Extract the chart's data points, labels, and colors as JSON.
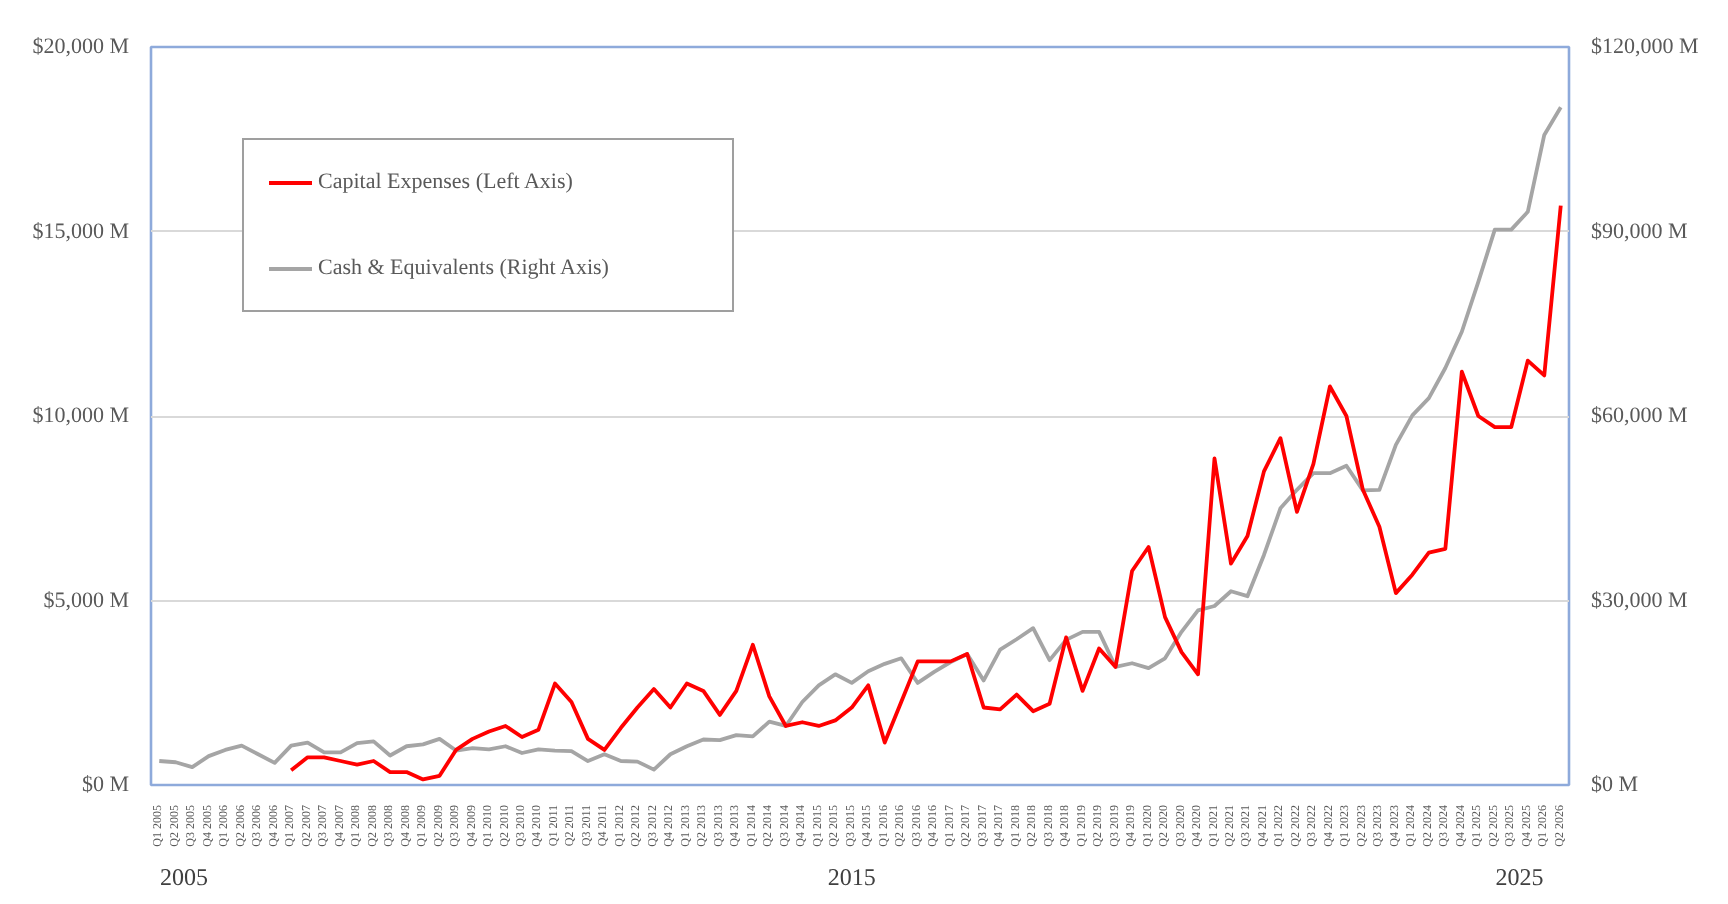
{
  "chart_data": {
    "type": "line",
    "categories": [
      "Q1 2005",
      "Q2 2005",
      "Q3 2005",
      "Q4 2005",
      "Q1 2006",
      "Q2 2006",
      "Q3 2006",
      "Q4 2006",
      "Q1 2007",
      "Q2 2007",
      "Q3 2007",
      "Q4 2007",
      "Q1 2008",
      "Q2 2008",
      "Q3 2008",
      "Q4 2008",
      "Q1 2009",
      "Q2 2009",
      "Q3 2009",
      "Q4 2009",
      "Q1 2010",
      "Q2 2010",
      "Q3 2010",
      "Q4 2010",
      "Q1 2011",
      "Q2 2011",
      "Q3 2011",
      "Q4 2011",
      "Q1 2012",
      "Q2 2012",
      "Q3 2012",
      "Q4 2012",
      "Q1 2013",
      "Q2 2013",
      "Q3 2013",
      "Q4 2013",
      "Q1 2014",
      "Q2 2014",
      "Q3 2014",
      "Q4 2014",
      "Q1 2015",
      "Q2 2015",
      "Q3 2015",
      "Q4 2015",
      "Q1 2016",
      "Q2 2016",
      "Q3 2016",
      "Q4 2016",
      "Q1 2017",
      "Q2 2017",
      "Q3 2017",
      "Q4 2017",
      "Q1 2018",
      "Q2 2018",
      "Q3 2018",
      "Q4 2018",
      "Q1 2019",
      "Q2 2019",
      "Q3 2019",
      "Q4 2019",
      "Q1 2020",
      "Q2 2020",
      "Q3 2020",
      "Q4 2020",
      "Q1 2021",
      "Q2 2021",
      "Q3 2021",
      "Q4 2021",
      "Q1 2022",
      "Q2 2022",
      "Q3 2022",
      "Q4 2022",
      "Q1 2023",
      "Q2 2023",
      "Q3 2023",
      "Q4 2023",
      "Q1 2024",
      "Q2 2024",
      "Q3 2024",
      "Q4 2024",
      "Q1 2025",
      "Q2 2025",
      "Q3 2025",
      "Q4 2025",
      "Q1 2026",
      "Q2 2026"
    ],
    "series": [
      {
        "name": "Capital Expenses (Left Axis)",
        "color": "#ff0000",
        "values": [
          null,
          null,
          null,
          null,
          null,
          null,
          null,
          null,
          400,
          750,
          750,
          650,
          550,
          650,
          350,
          350,
          150,
          250,
          950,
          1250,
          1450,
          1600,
          1300,
          1500,
          2750,
          2250,
          1250,
          950,
          1550,
          2100,
          2600,
          2100,
          2750,
          2550,
          1900,
          2550,
          3800,
          2400,
          1600,
          1700,
          1600,
          1750,
          2100,
          2700,
          1150,
          2250,
          3350,
          3350,
          3350,
          3550,
          2100,
          2050,
          2450,
          2000,
          2200,
          4000,
          2550,
          3700,
          3200,
          5800,
          6450,
          4550,
          3600,
          3000,
          8850,
          6000,
          6750,
          8500,
          9400,
          7400,
          8700,
          10800,
          10000,
          8000,
          7000,
          5200,
          5700,
          6300,
          6400,
          11200,
          10000,
          9700,
          9700,
          11500,
          11100,
          15700
        ]
      },
      {
        "name": "Cash & Equivalents (Right Axis)",
        "color": "#a5a5a5",
        "axis": "y2",
        "values": [
          3900,
          3700,
          2900,
          4700,
          5700,
          6400,
          5000,
          3600,
          6400,
          6900,
          5300,
          5300,
          6800,
          7100,
          4800,
          6300,
          6600,
          7500,
          5600,
          6000,
          5800,
          6300,
          5200,
          5800,
          5600,
          5500,
          3900,
          5000,
          3900,
          3800,
          2500,
          5000,
          6300,
          7400,
          7300,
          8100,
          7900,
          10300,
          9600,
          13500,
          16200,
          18000,
          16600,
          18500,
          19700,
          20600,
          16600,
          18400,
          20000,
          21300,
          17000,
          22000,
          23700,
          25500,
          20300,
          23600,
          24900,
          24900,
          19200,
          19800,
          19000,
          20600,
          24900,
          28400,
          29100,
          31500,
          30700,
          37400,
          45000,
          48000,
          50700,
          50700,
          51900,
          47900,
          48000,
          55300,
          60100,
          62900,
          67800,
          73700,
          81800,
          90300,
          90300,
          93200,
          105700,
          110200
        ]
      }
    ],
    "ylim": [
      0,
      20000
    ],
    "yticks": [
      {
        "value": 0,
        "label": "$0 M"
      },
      {
        "value": 5000,
        "label": "$5,000 M"
      },
      {
        "value": 10000,
        "label": "$10,000 M"
      },
      {
        "value": 15000,
        "label": "$15,000 M"
      },
      {
        "value": 20000,
        "label": "$20,000 M"
      }
    ],
    "y2lim": [
      0,
      120000
    ],
    "y2ticks": [
      {
        "value": 0,
        "label": "$0 M"
      },
      {
        "value": 30000,
        "label": "$30,000 M"
      },
      {
        "value": 60000,
        "label": "$60,000 M"
      },
      {
        "value": 90000,
        "label": "$90,000 M"
      },
      {
        "value": 120000,
        "label": "$120,000 M"
      }
    ],
    "grid": "y",
    "legend": "top left",
    "annotations": [
      "2005",
      "2015",
      "2025"
    ]
  }
}
